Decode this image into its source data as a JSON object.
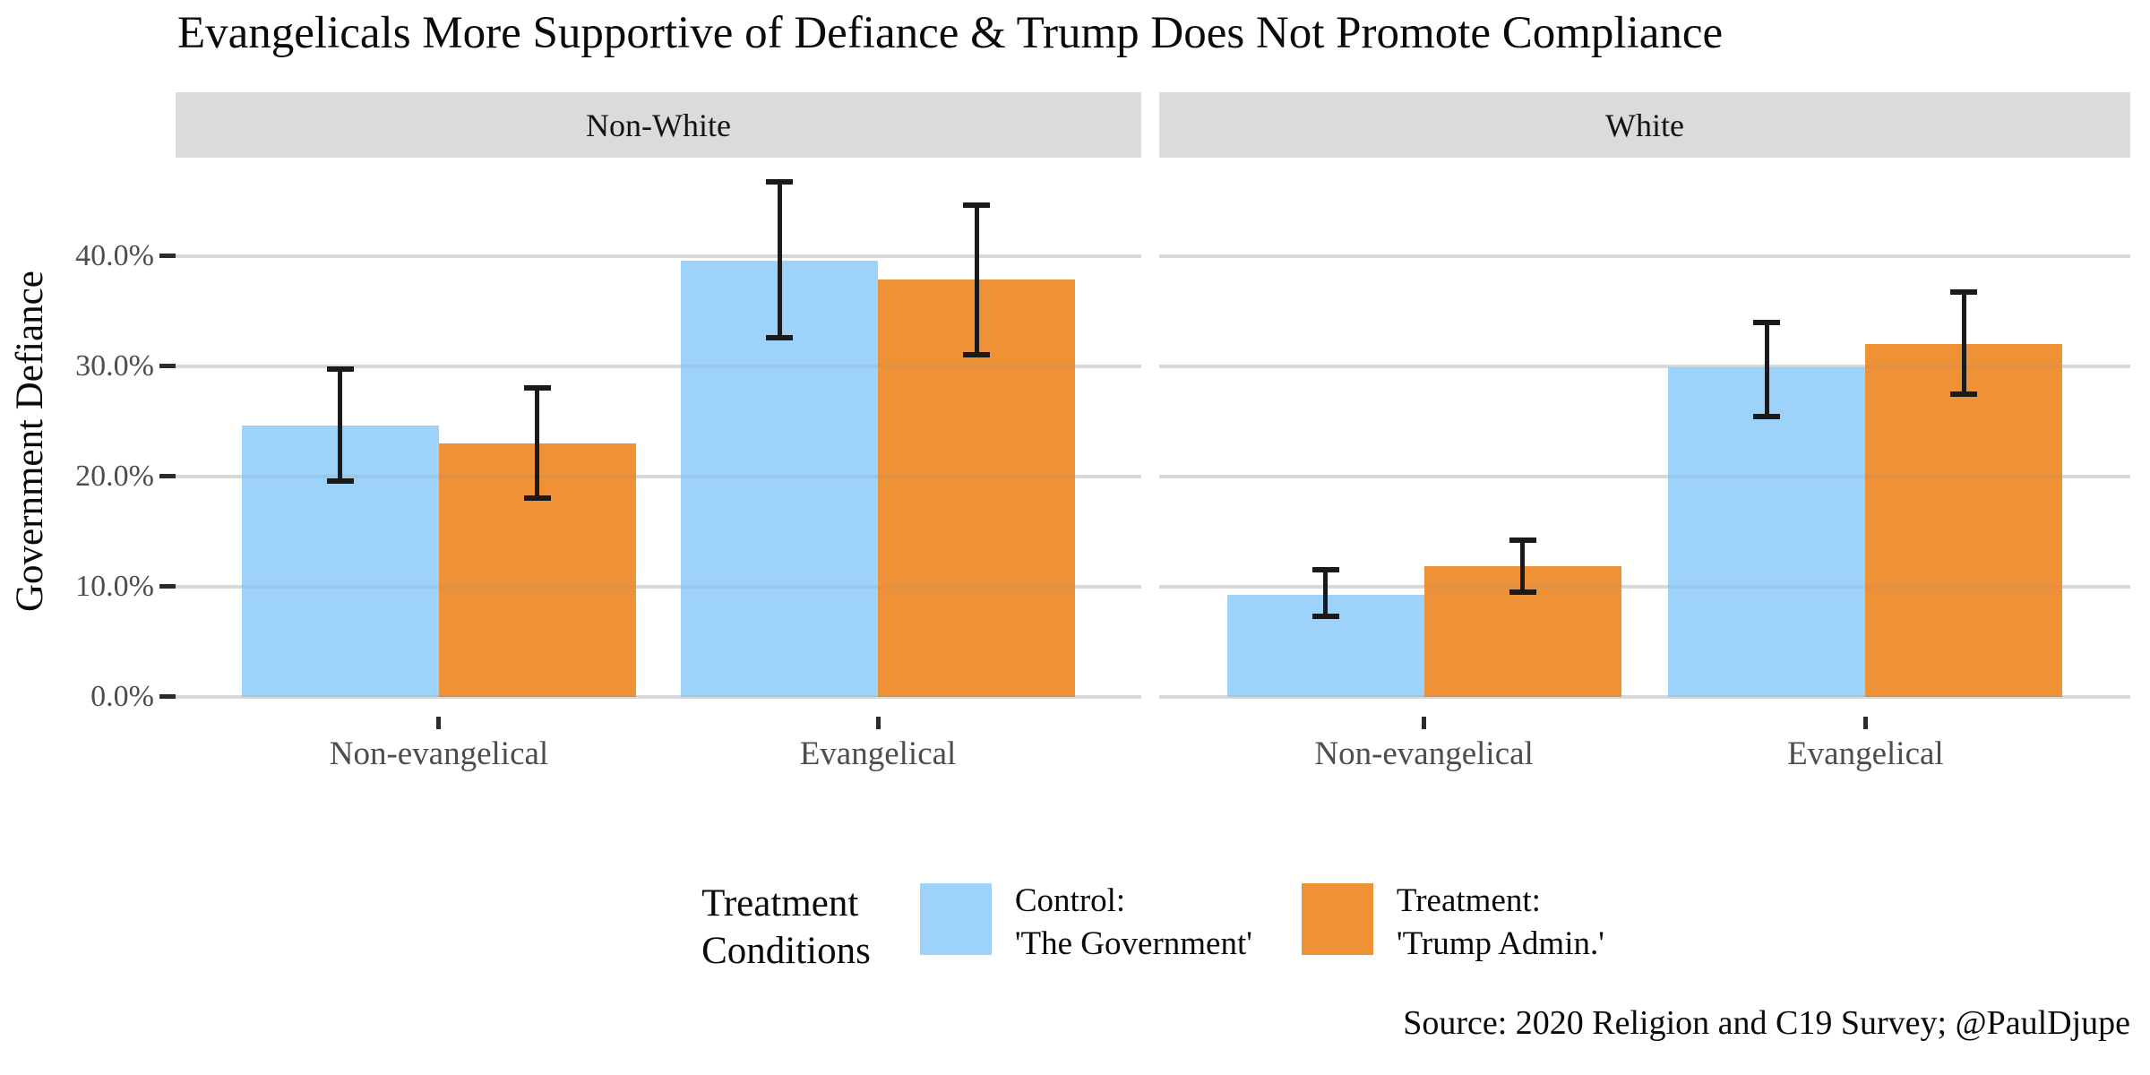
{
  "title": "Evangelicals More Supportive of Defiance & Trump Does Not Promote Compliance",
  "y_axis": {
    "label": "Government Defiance",
    "ticks": [
      {
        "value": 0,
        "label": "0.0%"
      },
      {
        "value": 10,
        "label": "10.0%"
      },
      {
        "value": 20,
        "label": "20.0%"
      },
      {
        "value": 30,
        "label": "30.0%"
      },
      {
        "value": 40,
        "label": "40.0%"
      }
    ]
  },
  "legend": {
    "title_line1": "Treatment",
    "title_line2": "Conditions",
    "items": [
      {
        "line1": "Control:",
        "line2": "'The Government'",
        "color": "#9DD3FA"
      },
      {
        "line1": "Treatment:",
        "line2": "'Trump Admin.'",
        "color": "#EF9136"
      }
    ]
  },
  "caption": "Source: 2020 Religion and C19 Survey; @PaulDjupe",
  "colors": {
    "control": "#9DD3FA",
    "treatment": "#EF9136",
    "gridline": "#E6E6E6",
    "gridline_overlay": "rgba(140,140,140,0.16)",
    "strip_background": "#DBDBDB",
    "axis_text": "#4D4D4D",
    "tick_mark": "#2B2B2B",
    "error_bar": "#1A1A1A"
  },
  "chart_data": {
    "type": "bar",
    "subtype": "grouped-bars-with-error-bars, faceted",
    "title": "Evangelicals More Supportive of Defiance & Trump Does Not Promote Compliance",
    "xlabel": "",
    "ylabel": "Government Defiance",
    "unit": "percent",
    "ylim": [
      0,
      49
    ],
    "yticks": [
      0,
      10,
      20,
      30,
      40
    ],
    "grid": "horizontal-major",
    "legend_position": "bottom",
    "legend_title": "Treatment Conditions",
    "categories": [
      "Non-evangelical",
      "Evangelical"
    ],
    "facets": [
      {
        "name": "Non-White",
        "series": [
          {
            "name": "Control: 'The Government'",
            "color": "#9DD3FA",
            "values": [
              24.6,
              39.6
            ],
            "ci_low": [
              19.5,
              32.5
            ],
            "ci_high": [
              29.8,
              46.8
            ]
          },
          {
            "name": "Treatment: 'Trump Admin.'",
            "color": "#EF9136",
            "values": [
              23.0,
              37.9
            ],
            "ci_low": [
              18.0,
              31.0
            ],
            "ci_high": [
              28.1,
              44.7
            ]
          }
        ]
      },
      {
        "name": "White",
        "series": [
          {
            "name": "Control: 'The Government'",
            "color": "#9DD3FA",
            "values": [
              9.3,
              29.9
            ],
            "ci_low": [
              7.2,
              25.4
            ],
            "ci_high": [
              11.6,
              34.1
            ]
          },
          {
            "name": "Treatment: 'Trump Admin.'",
            "color": "#EF9136",
            "values": [
              11.9,
              32.0
            ],
            "ci_low": [
              9.4,
              27.4
            ],
            "ci_high": [
              14.3,
              36.8
            ]
          }
        ]
      }
    ]
  }
}
